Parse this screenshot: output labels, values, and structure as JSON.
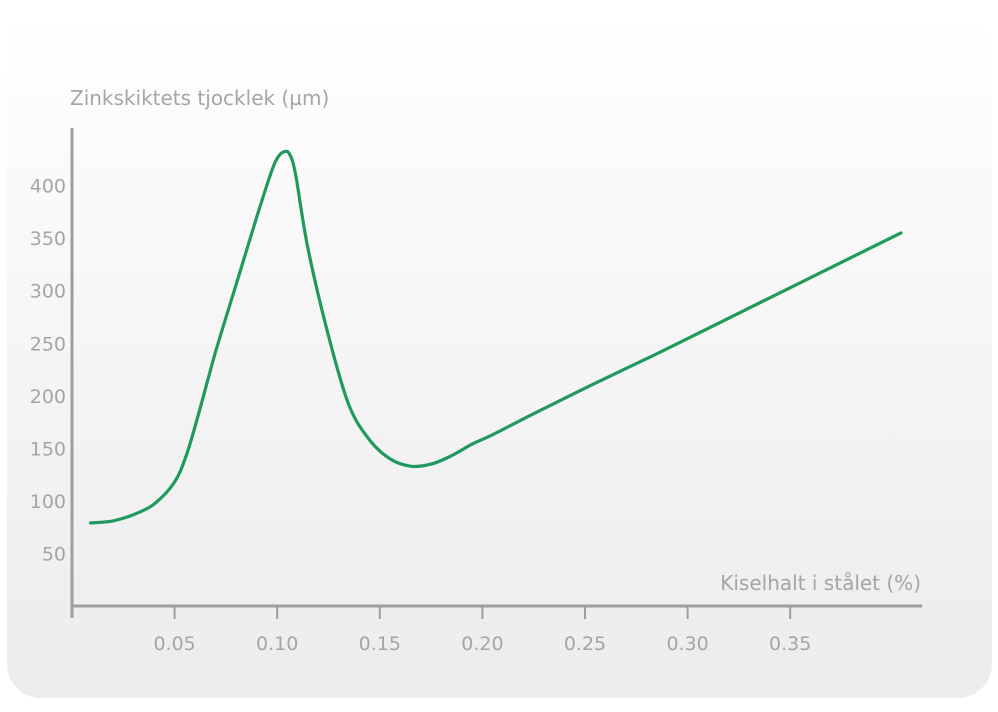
{
  "chart_data": {
    "type": "line",
    "ylabel": "Zinkskiktets tjocklek (µm)",
    "xlabel": "Kiselhalt i stålet (%)",
    "x_ticks": [
      "0.05",
      "0.10",
      "0.15",
      "0.20",
      "0.25",
      "0.30",
      "0.35"
    ],
    "y_ticks": [
      "50",
      "100",
      "150",
      "200",
      "250",
      "300",
      "350",
      "400"
    ],
    "xlim": [
      0,
      0.415
    ],
    "ylim": [
      0,
      460
    ],
    "grid": false,
    "line_color": "#1f9a5c",
    "axis_color": "#9d9ea2",
    "series": [
      {
        "x": [
          0.009,
          0.02,
          0.03,
          0.04,
          0.05,
          0.056,
          0.062,
          0.07,
          0.08,
          0.09,
          0.097,
          0.1,
          0.103,
          0.106,
          0.109,
          0.115,
          0.125,
          0.135,
          0.145,
          0.155,
          0.165,
          0.175,
          0.185,
          0.195,
          0.205,
          0.225,
          0.255,
          0.285,
          0.315,
          0.345,
          0.375,
          0.404
        ],
        "y": [
          79,
          81,
          87,
          97,
          118,
          145,
          185,
          242,
          306,
          370,
          412,
          426,
          432,
          430,
          410,
          340,
          257,
          191,
          158,
          140,
          133,
          135,
          143,
          154,
          163,
          183,
          212,
          240,
          269,
          298,
          327,
          355
        ]
      }
    ]
  }
}
